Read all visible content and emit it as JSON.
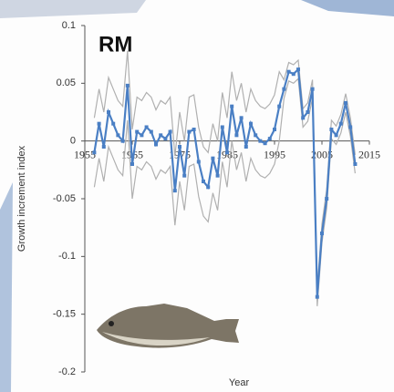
{
  "chart_data": {
    "type": "line",
    "title": "RM",
    "xlabel": "Year",
    "ylabel": "Growth increment index",
    "x": [
      1957,
      1958,
      1959,
      1960,
      1961,
      1962,
      1963,
      1964,
      1965,
      1966,
      1967,
      1968,
      1969,
      1970,
      1971,
      1972,
      1973,
      1974,
      1975,
      1976,
      1977,
      1978,
      1979,
      1980,
      1981,
      1982,
      1983,
      1984,
      1985,
      1986,
      1987,
      1988,
      1989,
      1990,
      1991,
      1992,
      1993,
      1994,
      1995,
      1996,
      1997,
      1998,
      1999,
      2000,
      2001,
      2002,
      2003,
      2004,
      2005,
      2006,
      2007,
      2008,
      2009,
      2010,
      2011,
      2012
    ],
    "series": [
      {
        "color": "#b0b0b0",
        "values": [
          0.02,
          0.045,
          0.025,
          0.055,
          0.045,
          0.035,
          0.03,
          0.078,
          0.01,
          0.038,
          0.035,
          0.042,
          0.038,
          0.027,
          0.035,
          0.032,
          0.038,
          -0.013,
          0.025,
          0.0,
          0.038,
          0.04,
          0.012,
          -0.005,
          -0.01,
          0.015,
          0.0,
          0.042,
          0.02,
          0.06,
          0.035,
          0.05,
          0.025,
          0.045,
          0.035,
          0.03,
          0.028,
          0.032,
          0.04,
          0.06,
          0.053,
          0.068,
          0.066,
          0.07,
          0.028,
          0.033,
          0.053,
          -0.127,
          -0.072,
          -0.042,
          0.018,
          0.013,
          0.023,
          0.041,
          0.02,
          -0.012
        ]
      },
      {
        "color": "#b0b0b0",
        "values": [
          -0.04,
          -0.015,
          -0.035,
          -0.005,
          -0.015,
          -0.025,
          -0.03,
          0.018,
          -0.05,
          -0.022,
          -0.025,
          -0.018,
          -0.022,
          -0.033,
          -0.025,
          -0.028,
          -0.022,
          -0.073,
          -0.035,
          -0.06,
          -0.022,
          -0.02,
          -0.048,
          -0.065,
          -0.07,
          -0.045,
          -0.06,
          -0.018,
          -0.04,
          0.0,
          -0.025,
          -0.01,
          -0.035,
          -0.015,
          -0.025,
          -0.03,
          -0.032,
          -0.028,
          -0.02,
          0.0,
          0.037,
          0.052,
          0.05,
          0.054,
          0.012,
          0.017,
          0.037,
          -0.143,
          -0.088,
          -0.058,
          0.002,
          -0.003,
          0.007,
          0.025,
          0.004,
          -0.028
        ]
      },
      {
        "color": "#4a7fc4",
        "values": [
          -0.01,
          0.015,
          -0.005,
          0.025,
          0.015,
          0.005,
          0.0,
          0.048,
          -0.02,
          0.008,
          0.005,
          0.012,
          0.008,
          -0.003,
          0.005,
          0.002,
          0.008,
          -0.043,
          -0.005,
          -0.03,
          0.008,
          0.01,
          -0.018,
          -0.035,
          -0.04,
          -0.015,
          -0.03,
          0.012,
          -0.01,
          0.03,
          0.005,
          0.02,
          -0.005,
          0.015,
          0.005,
          0.0,
          -0.002,
          0.002,
          0.01,
          0.03,
          0.045,
          0.06,
          0.058,
          0.062,
          0.02,
          0.025,
          0.045,
          -0.135,
          -0.08,
          -0.05,
          0.01,
          0.005,
          0.015,
          0.033,
          0.012,
          -0.02
        ]
      }
    ],
    "xlim": [
      1955,
      2015
    ],
    "xticks": [
      1955,
      1965,
      1975,
      1985,
      1995,
      2005,
      2015
    ],
    "ylim": [
      -0.2,
      0.1
    ],
    "yticks": [
      0.1,
      0.05,
      0,
      -0.05,
      -0.1,
      -0.15,
      -0.2
    ]
  }
}
